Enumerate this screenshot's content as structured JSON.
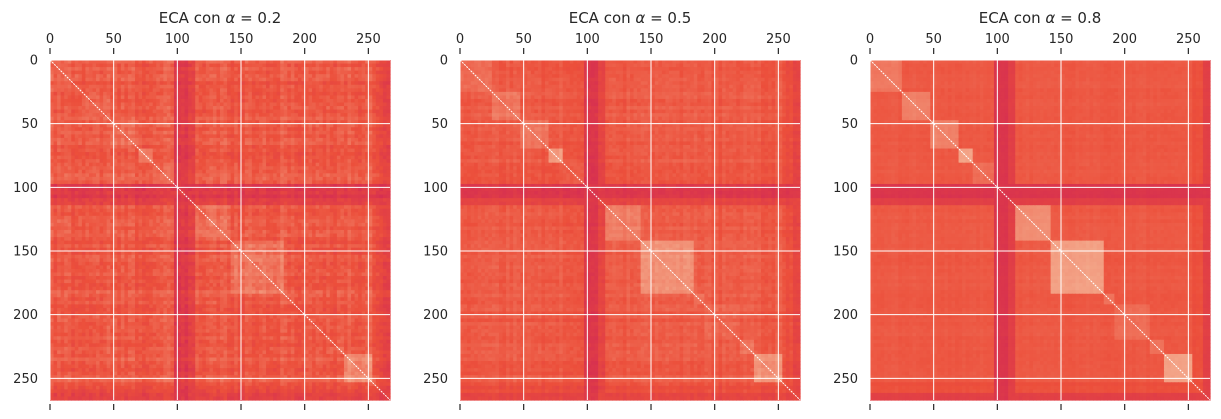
{
  "figure": {
    "title_prefix": "ECA con ",
    "title_symbol": "α",
    "title_equals": " = "
  },
  "chart_data": [
    {
      "type": "heatmap",
      "title": "ECA con α = 0.2",
      "alpha": "0.2",
      "xlabel": "",
      "ylabel": "",
      "x_range": [
        0,
        267
      ],
      "y_range": [
        0,
        267
      ],
      "y_inverted": true,
      "x_ticks": [
        0,
        50,
        100,
        150,
        200,
        250
      ],
      "y_ticks": [
        0,
        50,
        100,
        150,
        200,
        250
      ],
      "x_tick_position": "top",
      "grid": true,
      "block_bounds": [
        0,
        25,
        47,
        70,
        82,
        97,
        108,
        115,
        143,
        183,
        192,
        220,
        232,
        253,
        261,
        267
      ],
      "within_block_similarity": [
        0.48,
        0.5,
        0.52,
        0.7,
        0.48,
        0.15,
        0.28,
        0.55,
        0.62,
        0.48,
        0.45,
        0.5,
        0.68,
        0.38,
        0.28
      ],
      "between_block_similarity": 0.4,
      "noise": "high",
      "diagonal_value": 1.0,
      "color_low": "#d42c53",
      "color_mid": "#ec4f3b",
      "color_high": "#f6c8a8"
    },
    {
      "type": "heatmap",
      "title": "ECA con α = 0.5",
      "alpha": "0.5",
      "xlabel": "",
      "ylabel": "",
      "x_range": [
        0,
        267
      ],
      "y_range": [
        0,
        267
      ],
      "y_inverted": true,
      "x_ticks": [
        0,
        50,
        100,
        150,
        200,
        250
      ],
      "y_ticks": [
        0,
        50,
        100,
        150,
        200,
        250
      ],
      "x_tick_position": "top",
      "grid": true,
      "block_bounds": [
        0,
        25,
        47,
        70,
        82,
        97,
        108,
        115,
        143,
        183,
        192,
        220,
        232,
        253,
        261,
        267
      ],
      "within_block_similarity": [
        0.55,
        0.58,
        0.6,
        0.78,
        0.52,
        0.12,
        0.25,
        0.62,
        0.7,
        0.55,
        0.5,
        0.55,
        0.75,
        0.38,
        0.25
      ],
      "between_block_similarity": 0.4,
      "noise": "medium",
      "diagonal_value": 1.0,
      "color_low": "#d42c53",
      "color_mid": "#ec4f3b",
      "color_high": "#f6c8a8"
    },
    {
      "type": "heatmap",
      "title": "ECA con α = 0.8",
      "alpha": "0.8",
      "xlabel": "",
      "ylabel": "",
      "x_range": [
        0,
        267
      ],
      "y_range": [
        0,
        267
      ],
      "y_inverted": true,
      "x_ticks": [
        0,
        50,
        100,
        150,
        200,
        250
      ],
      "y_ticks": [
        0,
        50,
        100,
        150,
        200,
        250
      ],
      "x_tick_position": "top",
      "grid": true,
      "block_bounds": [
        0,
        25,
        47,
        70,
        82,
        97,
        108,
        115,
        143,
        183,
        192,
        220,
        232,
        253,
        261,
        267
      ],
      "within_block_similarity": [
        0.6,
        0.65,
        0.66,
        0.82,
        0.55,
        0.1,
        0.22,
        0.7,
        0.8,
        0.6,
        0.55,
        0.58,
        0.82,
        0.4,
        0.22
      ],
      "between_block_similarity": 0.4,
      "noise": "low",
      "diagonal_value": 1.0,
      "color_low": "#d42c53",
      "color_mid": "#ec4f3b",
      "color_high": "#f6c8a8"
    }
  ]
}
